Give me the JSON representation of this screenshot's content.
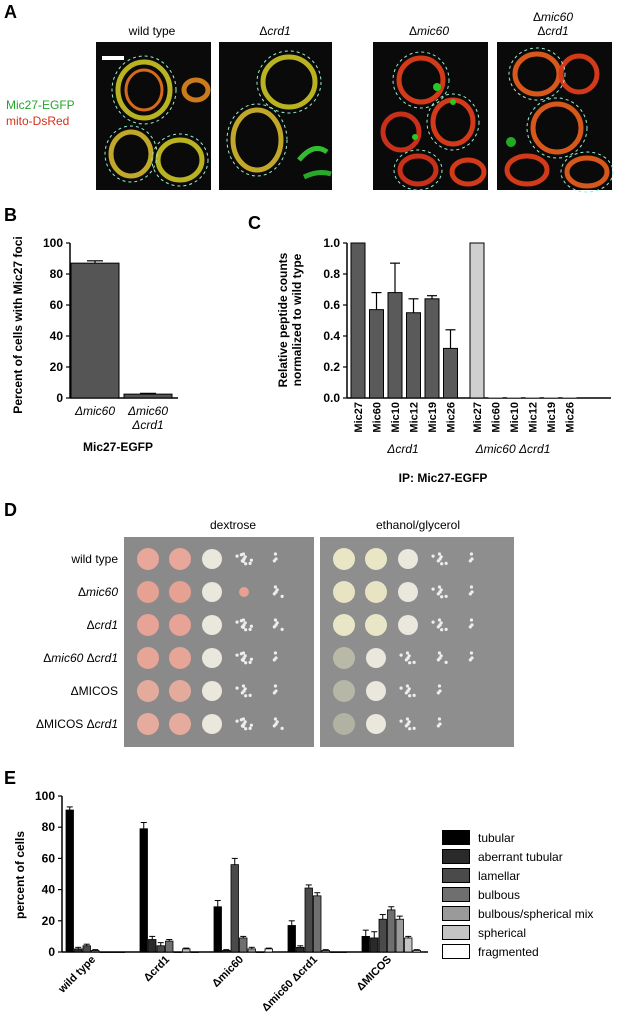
{
  "panelA": {
    "letter": "A",
    "conditions": [
      {
        "label": "wild type",
        "delta": "",
        "italic": ""
      },
      {
        "label": "",
        "delta": "Δ",
        "italic": "crd1"
      },
      {
        "label": "",
        "delta": "Δ",
        "italic": "mic60"
      },
      {
        "label": "",
        "delta": "Δ",
        "italic": "mic60",
        "line2_delta": "Δ",
        "line2_italic": "crd1"
      }
    ],
    "channel_labels": [
      "Mic27-EGFP",
      "mito-DsRed"
    ],
    "colors": {
      "green": "#22c82a",
      "red": "#e23a1e"
    }
  },
  "panelB": {
    "letter": "B",
    "chart_data": {
      "type": "bar",
      "categories": [
        "Δmic60",
        "Δmic60 Δcrd1"
      ],
      "values": [
        87,
        2.5
      ],
      "errors": [
        1.5,
        0.5
      ],
      "ylabel": "Percent of cells with Mic27 foci",
      "xlabel": "Mic27-EGFP",
      "ylim": [
        0,
        100
      ],
      "yticks": [
        "0",
        "20",
        "40",
        "60",
        "80",
        "100"
      ]
    }
  },
  "panelC": {
    "letter": "C",
    "chart_data": {
      "type": "bar",
      "categories": [
        "Mic27",
        "Mic60",
        "Mic10",
        "Mic12",
        "Mic19",
        "Mic26",
        "Mic27",
        "Mic60",
        "Mic10",
        "Mic12",
        "Mic19",
        "Mic26"
      ],
      "values": [
        1.0,
        0.57,
        0.68,
        0.55,
        0.64,
        0.32,
        1.0,
        0,
        0,
        0,
        0,
        0
      ],
      "errors": [
        0,
        0.11,
        0.19,
        0.09,
        0.02,
        0.12,
        0,
        0,
        0,
        0,
        0,
        0
      ],
      "groups": [
        {
          "label": "Δcrd1"
        },
        {
          "label": "Δmic60 Δcrd1"
        }
      ],
      "ylabel_line1": "Relative peptide counts",
      "ylabel_line2": "normalized to wild type",
      "xlabel": "IP: Mic27-EGFP",
      "ylim": [
        0,
        1.0
      ],
      "yticks": [
        "0.0",
        "0.2",
        "0.4",
        "0.6",
        "0.8",
        "1.0"
      ]
    }
  },
  "panelD": {
    "letter": "D",
    "media": [
      "dextrose",
      "ethanol/glycerol"
    ],
    "strains": [
      {
        "pre": "",
        "it": "",
        "post": "wild type"
      },
      {
        "pre": "Δ",
        "it": "mic60",
        "post": ""
      },
      {
        "pre": "Δ",
        "it": "crd1",
        "post": ""
      },
      {
        "pre": "Δ",
        "it": "mic60",
        "post": " Δ",
        "it2": "crd1"
      },
      {
        "pre": "ΔMICOS",
        "it": "",
        "post": ""
      },
      {
        "pre": "ΔMICOS Δ",
        "it": "crd1",
        "post": ""
      }
    ]
  },
  "panelE": {
    "letter": "E",
    "chart_data": {
      "type": "bar",
      "categories": [
        "wild type",
        "Δcrd1",
        "Δmic60",
        "Δmic60 Δcrd1",
        "ΔMICOS"
      ],
      "series": [
        {
          "name": "tubular",
          "color": "#000000",
          "values": [
            91,
            79,
            29,
            17,
            10
          ],
          "errors": [
            2,
            4,
            4,
            3,
            4
          ]
        },
        {
          "name": "aberrant tubular",
          "color": "#2a2a2a",
          "values": [
            2,
            8,
            1,
            3,
            9
          ],
          "errors": [
            1,
            2,
            0.5,
            1,
            4
          ]
        },
        {
          "name": "lamellar",
          "color": "#4a4a4a",
          "values": [
            4,
            4,
            56,
            41,
            21
          ],
          "errors": [
            1,
            2,
            4,
            2,
            3
          ]
        },
        {
          "name": "bulbous",
          "color": "#6f6f6f",
          "values": [
            1,
            7,
            9,
            36,
            27
          ],
          "errors": [
            0.5,
            1,
            1,
            2,
            2
          ]
        },
        {
          "name": "bulbous/spherical mix",
          "color": "#9a9a9a",
          "values": [
            0,
            0,
            2,
            1,
            21
          ],
          "errors": [
            0,
            0,
            1,
            0.5,
            2
          ]
        },
        {
          "name": "spherical",
          "color": "#c4c4c4",
          "values": [
            0,
            2,
            0,
            0,
            9
          ],
          "errors": [
            0,
            0.5,
            0,
            0,
            1
          ]
        },
        {
          "name": "fragmented",
          "color": "#ffffff",
          "values": [
            0,
            0,
            2,
            0,
            1
          ],
          "errors": [
            0,
            0,
            0.5,
            0,
            0.5
          ]
        }
      ],
      "ylabel": "percent of cells",
      "ylim": [
        0,
        100
      ],
      "yticks": [
        "0",
        "20",
        "40",
        "60",
        "80",
        "100"
      ],
      "legend": "right"
    }
  }
}
